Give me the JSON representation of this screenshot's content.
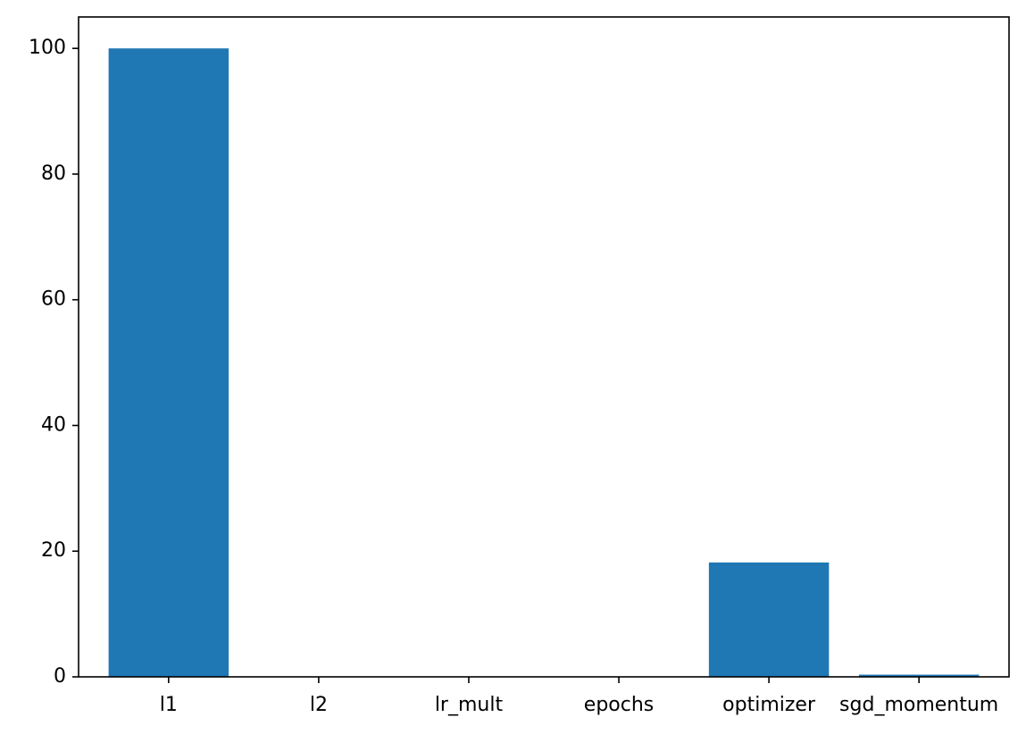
{
  "chart_data": {
    "type": "bar",
    "title": "",
    "xlabel": "",
    "ylabel": "",
    "categories": [
      "l1",
      "l2",
      "lr_mult",
      "epochs",
      "optimizer",
      "sgd_momentum"
    ],
    "values": [
      100,
      0,
      0,
      0,
      18.2,
      0.35
    ],
    "ylim": [
      0,
      105
    ],
    "yticks": [
      0,
      20,
      40,
      60,
      80,
      100
    ],
    "bar_color": "#1f77b4",
    "grid": false,
    "legend": "none"
  }
}
